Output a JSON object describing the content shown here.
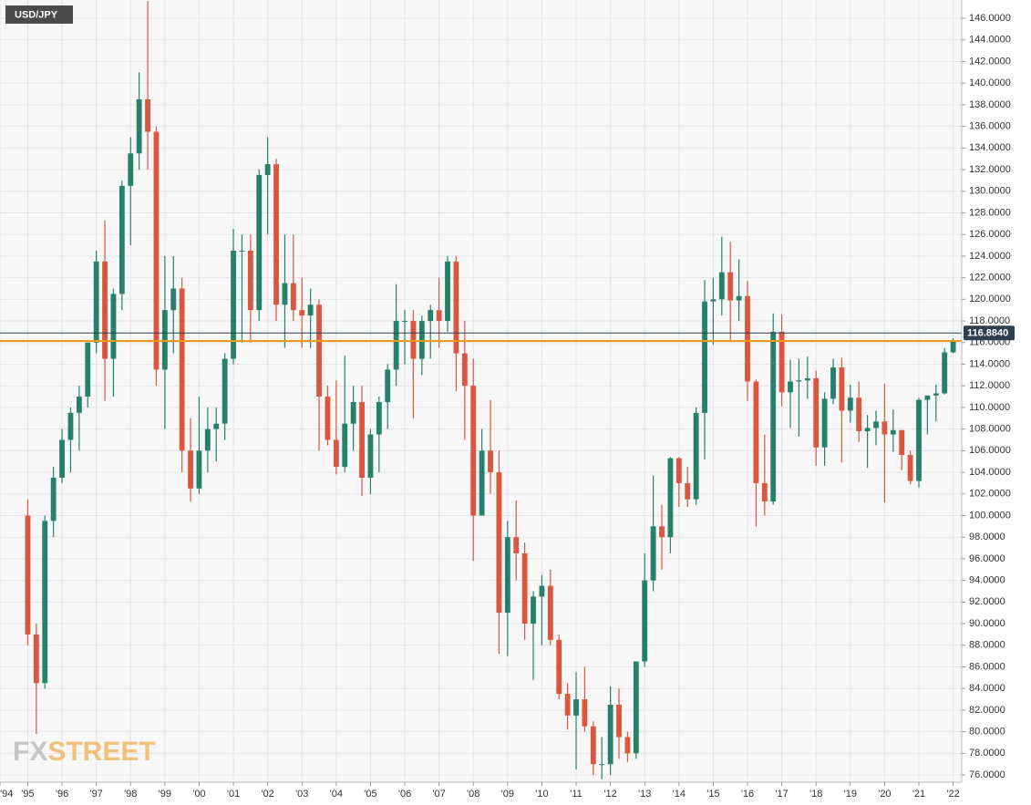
{
  "chart_data": {
    "type": "candlestick",
    "title": "USD/JPY",
    "watermark": [
      "FX",
      "STREET"
    ],
    "x": [
      1995.0,
      1995.25,
      1995.5,
      1995.75,
      1996.0,
      1996.25,
      1996.5,
      1996.75,
      1997.0,
      1997.25,
      1997.5,
      1997.75,
      1998.0,
      1998.25,
      1998.5,
      1998.75,
      1999.0,
      1999.25,
      1999.5,
      1999.75,
      2000.0,
      2000.25,
      2000.5,
      2000.75,
      2001.0,
      2001.25,
      2001.5,
      2001.75,
      2002.0,
      2002.25,
      2002.5,
      2002.75,
      2003.0,
      2003.25,
      2003.5,
      2003.75,
      2004.0,
      2004.25,
      2004.5,
      2004.75,
      2005.0,
      2005.25,
      2005.5,
      2005.75,
      2006.0,
      2006.25,
      2006.5,
      2006.75,
      2007.0,
      2007.25,
      2007.5,
      2007.75,
      2008.0,
      2008.25,
      2008.5,
      2008.75,
      2009.0,
      2009.25,
      2009.5,
      2009.75,
      2010.0,
      2010.25,
      2010.5,
      2010.75,
      2011.0,
      2011.25,
      2011.5,
      2011.75,
      2012.0,
      2012.25,
      2012.5,
      2012.75,
      2013.0,
      2013.25,
      2013.5,
      2013.75,
      2014.0,
      2014.25,
      2014.5,
      2014.75,
      2015.0,
      2015.25,
      2015.5,
      2015.75,
      2016.0,
      2016.25,
      2016.5,
      2016.75,
      2017.0,
      2017.25,
      2017.5,
      2017.75,
      2018.0,
      2018.25,
      2018.5,
      2018.75,
      2019.0,
      2019.25,
      2019.5,
      2019.75,
      2020.0,
      2020.25,
      2020.5,
      2020.75,
      2021.0,
      2021.25,
      2021.5,
      2021.75,
      2022.0
    ],
    "open": [
      100,
      89,
      84.5,
      99.5,
      103.5,
      107,
      109.5,
      111,
      116,
      123.5,
      114.5,
      120.5,
      130.5,
      133.5,
      138.5,
      135.5,
      113.5,
      119,
      121,
      106,
      102.5,
      106,
      108,
      108.5,
      114.5,
      124.5,
      124.5,
      119,
      131.5,
      132.5,
      119.5,
      121.5,
      119,
      118.5,
      119.5,
      111,
      107,
      104.5,
      108.5,
      110.5,
      103.5,
      107.5,
      110.5,
      113.5,
      118,
      118,
      114.5,
      118,
      119,
      118,
      123.5,
      115,
      112,
      100,
      106,
      104,
      91,
      98,
      96.5,
      90,
      92.5,
      93.5,
      88.5,
      83.5,
      81.5,
      83,
      80.5,
      77,
      77,
      82.5,
      79.5,
      78,
      86.5,
      94,
      99,
      98,
      105.3,
      103,
      101.5,
      109.5,
      119.8,
      120,
      122.5,
      119.9,
      120.3,
      112.4,
      103,
      101.3,
      117,
      111.4,
      112.4,
      112.5,
      112.7,
      106.3,
      110.8,
      113.7,
      109.7,
      110.9,
      107.8,
      108.1,
      108.7,
      107.5,
      107.9,
      105.6,
      103.2,
      110.7,
      111.1,
      111.3,
      115.1
    ],
    "high": [
      101.5,
      90,
      100,
      104.5,
      108,
      110,
      112,
      116,
      124.5,
      127.3,
      121,
      131,
      135,
      141,
      147.6,
      136,
      124,
      124,
      122,
      109,
      111,
      110,
      110,
      115,
      126.5,
      126,
      126,
      132,
      135,
      133,
      126,
      126,
      122,
      121,
      120,
      112,
      112.5,
      114.8,
      112,
      112,
      108,
      111,
      114,
      121.4,
      119,
      119,
      118.5,
      119.5,
      122,
      124,
      124,
      118,
      114.5,
      108,
      110.7,
      106,
      99.5,
      101.4,
      97.5,
      93,
      94.5,
      95,
      89,
      84.5,
      85.5,
      86,
      81,
      79.5,
      84.2,
      84,
      80,
      86.5,
      96.5,
      103.7,
      101,
      105.4,
      105.4,
      104.5,
      110,
      121.8,
      122,
      125.8,
      125.3,
      123.7,
      121.7,
      112.6,
      107.5,
      118.7,
      118.6,
      114.4,
      114.5,
      114.7,
      113.4,
      111.4,
      114.5,
      114.6,
      112.1,
      112.4,
      109.3,
      109.7,
      112.2,
      109.8,
      107.9,
      106,
      110.9,
      111.1,
      112.1,
      115.5,
      116.4
    ],
    "low": [
      88,
      79.8,
      84,
      98,
      103,
      104,
      106,
      110,
      115,
      110.6,
      111,
      119,
      125,
      132,
      132,
      112,
      108,
      115,
      104,
      101.3,
      102,
      104,
      105,
      107,
      114,
      116,
      116,
      118,
      126,
      118,
      115.5,
      118,
      115.5,
      115.5,
      106,
      106.5,
      103.8,
      104,
      106,
      101.8,
      102,
      104,
      108,
      112,
      114,
      109,
      113,
      114.5,
      115.5,
      117,
      111.5,
      107,
      95.8,
      100,
      102,
      87.2,
      87,
      94,
      88.5,
      84.8,
      88,
      88,
      83,
      80.2,
      76.5,
      80,
      76,
      75.6,
      76,
      77.5,
      77.2,
      77.5,
      86,
      93,
      95,
      96.5,
      100.8,
      100.8,
      101,
      105.2,
      115.8,
      118.5,
      116.2,
      118,
      110.6,
      99,
      100,
      101,
      110.1,
      108.1,
      107.3,
      110.8,
      104.6,
      104.6,
      110.3,
      104.9,
      108.6,
      106.8,
      104.4,
      106.5,
      101.2,
      105.9,
      104.2,
      102.9,
      102.6,
      107.5,
      108.7,
      111.2,
      115
    ],
    "close": [
      89,
      84.5,
      99.5,
      103.5,
      107,
      109.5,
      111,
      116,
      123.5,
      114.5,
      120.5,
      130.5,
      133.5,
      138.5,
      135.5,
      113.5,
      119,
      121,
      106,
      102.5,
      106,
      108,
      108.5,
      114.5,
      124.5,
      124.5,
      119,
      131.5,
      132.5,
      119.5,
      121.5,
      119,
      118.5,
      119.5,
      111,
      107,
      104.5,
      108.5,
      110.5,
      103.5,
      107.5,
      110.5,
      113.5,
      118,
      118,
      114.5,
      118,
      119,
      118,
      123.5,
      115,
      112,
      100,
      106,
      104,
      91,
      98,
      96.5,
      90,
      92.5,
      93.5,
      88.5,
      83.5,
      81.5,
      83,
      80.5,
      77,
      77,
      82.5,
      79.5,
      78,
      86.5,
      94,
      99,
      98,
      105.3,
      103,
      101.5,
      109.5,
      119.8,
      120,
      122.5,
      119.9,
      120.3,
      112.4,
      103,
      101.3,
      117,
      111.4,
      112.4,
      112.5,
      112.7,
      106.3,
      110.8,
      113.7,
      109.7,
      110.9,
      107.8,
      108.1,
      108.7,
      107.5,
      107.9,
      105.6,
      103.2,
      110.7,
      111.1,
      111.3,
      115.1,
      116.1
    ],
    "up_color": "#26806a",
    "down_color": "#d9563f",
    "last_price": {
      "value": 116.884,
      "label": "116.8840"
    },
    "last_price_color": "#2c3e50",
    "reference_line": 116.15,
    "reference_color": "#f39c12",
    "xlim": [
      1994.19,
      2022.25
    ],
    "ylim": [
      75.33,
      147.69
    ],
    "grid": true,
    "xticks": [
      {
        "value": 1994.19,
        "label": "'94"
      },
      {
        "value": 1995,
        "label": "'95"
      },
      {
        "value": 1996,
        "label": "'96"
      },
      {
        "value": 1997,
        "label": "'97"
      },
      {
        "value": 1998,
        "label": "'98"
      },
      {
        "value": 1999,
        "label": "'99"
      },
      {
        "value": 2000,
        "label": "'00"
      },
      {
        "value": 2001,
        "label": "'01"
      },
      {
        "value": 2002,
        "label": "'02"
      },
      {
        "value": 2003,
        "label": "'03"
      },
      {
        "value": 2004,
        "label": "'04"
      },
      {
        "value": 2005,
        "label": "'05"
      },
      {
        "value": 2006,
        "label": "'06"
      },
      {
        "value": 2007,
        "label": "'07"
      },
      {
        "value": 2008,
        "label": "'08"
      },
      {
        "value": 2009,
        "label": "'09"
      },
      {
        "value": 2010,
        "label": "'10"
      },
      {
        "value": 2011,
        "label": "'11"
      },
      {
        "value": 2012,
        "label": "'12"
      },
      {
        "value": 2013,
        "label": "'13"
      },
      {
        "value": 2014,
        "label": "'14"
      },
      {
        "value": 2015,
        "label": "'15"
      },
      {
        "value": 2016,
        "label": "'16"
      },
      {
        "value": 2017,
        "label": "'17"
      },
      {
        "value": 2018,
        "label": "'18"
      },
      {
        "value": 2019,
        "label": "'19"
      },
      {
        "value": 2020,
        "label": "'20"
      },
      {
        "value": 2021,
        "label": "'21"
      },
      {
        "value": 2022,
        "label": "'22"
      }
    ],
    "yticks": [
      {
        "value": 76,
        "label": "76.0000"
      },
      {
        "value": 78,
        "label": "78.0000"
      },
      {
        "value": 80,
        "label": "80.0000"
      },
      {
        "value": 82,
        "label": "82.0000"
      },
      {
        "value": 84,
        "label": "84.0000"
      },
      {
        "value": 86,
        "label": "86.0000"
      },
      {
        "value": 88,
        "label": "88.0000"
      },
      {
        "value": 90,
        "label": "90.0000"
      },
      {
        "value": 92,
        "label": "92.0000"
      },
      {
        "value": 94,
        "label": "94.0000"
      },
      {
        "value": 96,
        "label": "96.0000"
      },
      {
        "value": 98,
        "label": "98.0000"
      },
      {
        "value": 100,
        "label": "100.0000"
      },
      {
        "value": 102,
        "label": "102.0000"
      },
      {
        "value": 104,
        "label": "104.0000"
      },
      {
        "value": 106,
        "label": "106.0000"
      },
      {
        "value": 108,
        "label": "108.0000"
      },
      {
        "value": 110,
        "label": "110.0000"
      },
      {
        "value": 112,
        "label": "112.0000"
      },
      {
        "value": 114,
        "label": "114.0000"
      },
      {
        "value": 116,
        "label": "116.0000"
      },
      {
        "value": 118,
        "label": "118.0000"
      },
      {
        "value": 120,
        "label": "120.0000"
      },
      {
        "value": 122,
        "label": "122.0000"
      },
      {
        "value": 124,
        "label": "124.0000"
      },
      {
        "value": 126,
        "label": "126.0000"
      },
      {
        "value": 128,
        "label": "128.0000"
      },
      {
        "value": 130,
        "label": "130.0000"
      },
      {
        "value": 132,
        "label": "132.0000"
      },
      {
        "value": 134,
        "label": "134.0000"
      },
      {
        "value": 136,
        "label": "136.0000"
      },
      {
        "value": 138,
        "label": "138.0000"
      },
      {
        "value": 140,
        "label": "140.0000"
      },
      {
        "value": 142,
        "label": "142.0000"
      },
      {
        "value": 144,
        "label": "144.0000"
      },
      {
        "value": 146,
        "label": "146.0000"
      }
    ]
  }
}
